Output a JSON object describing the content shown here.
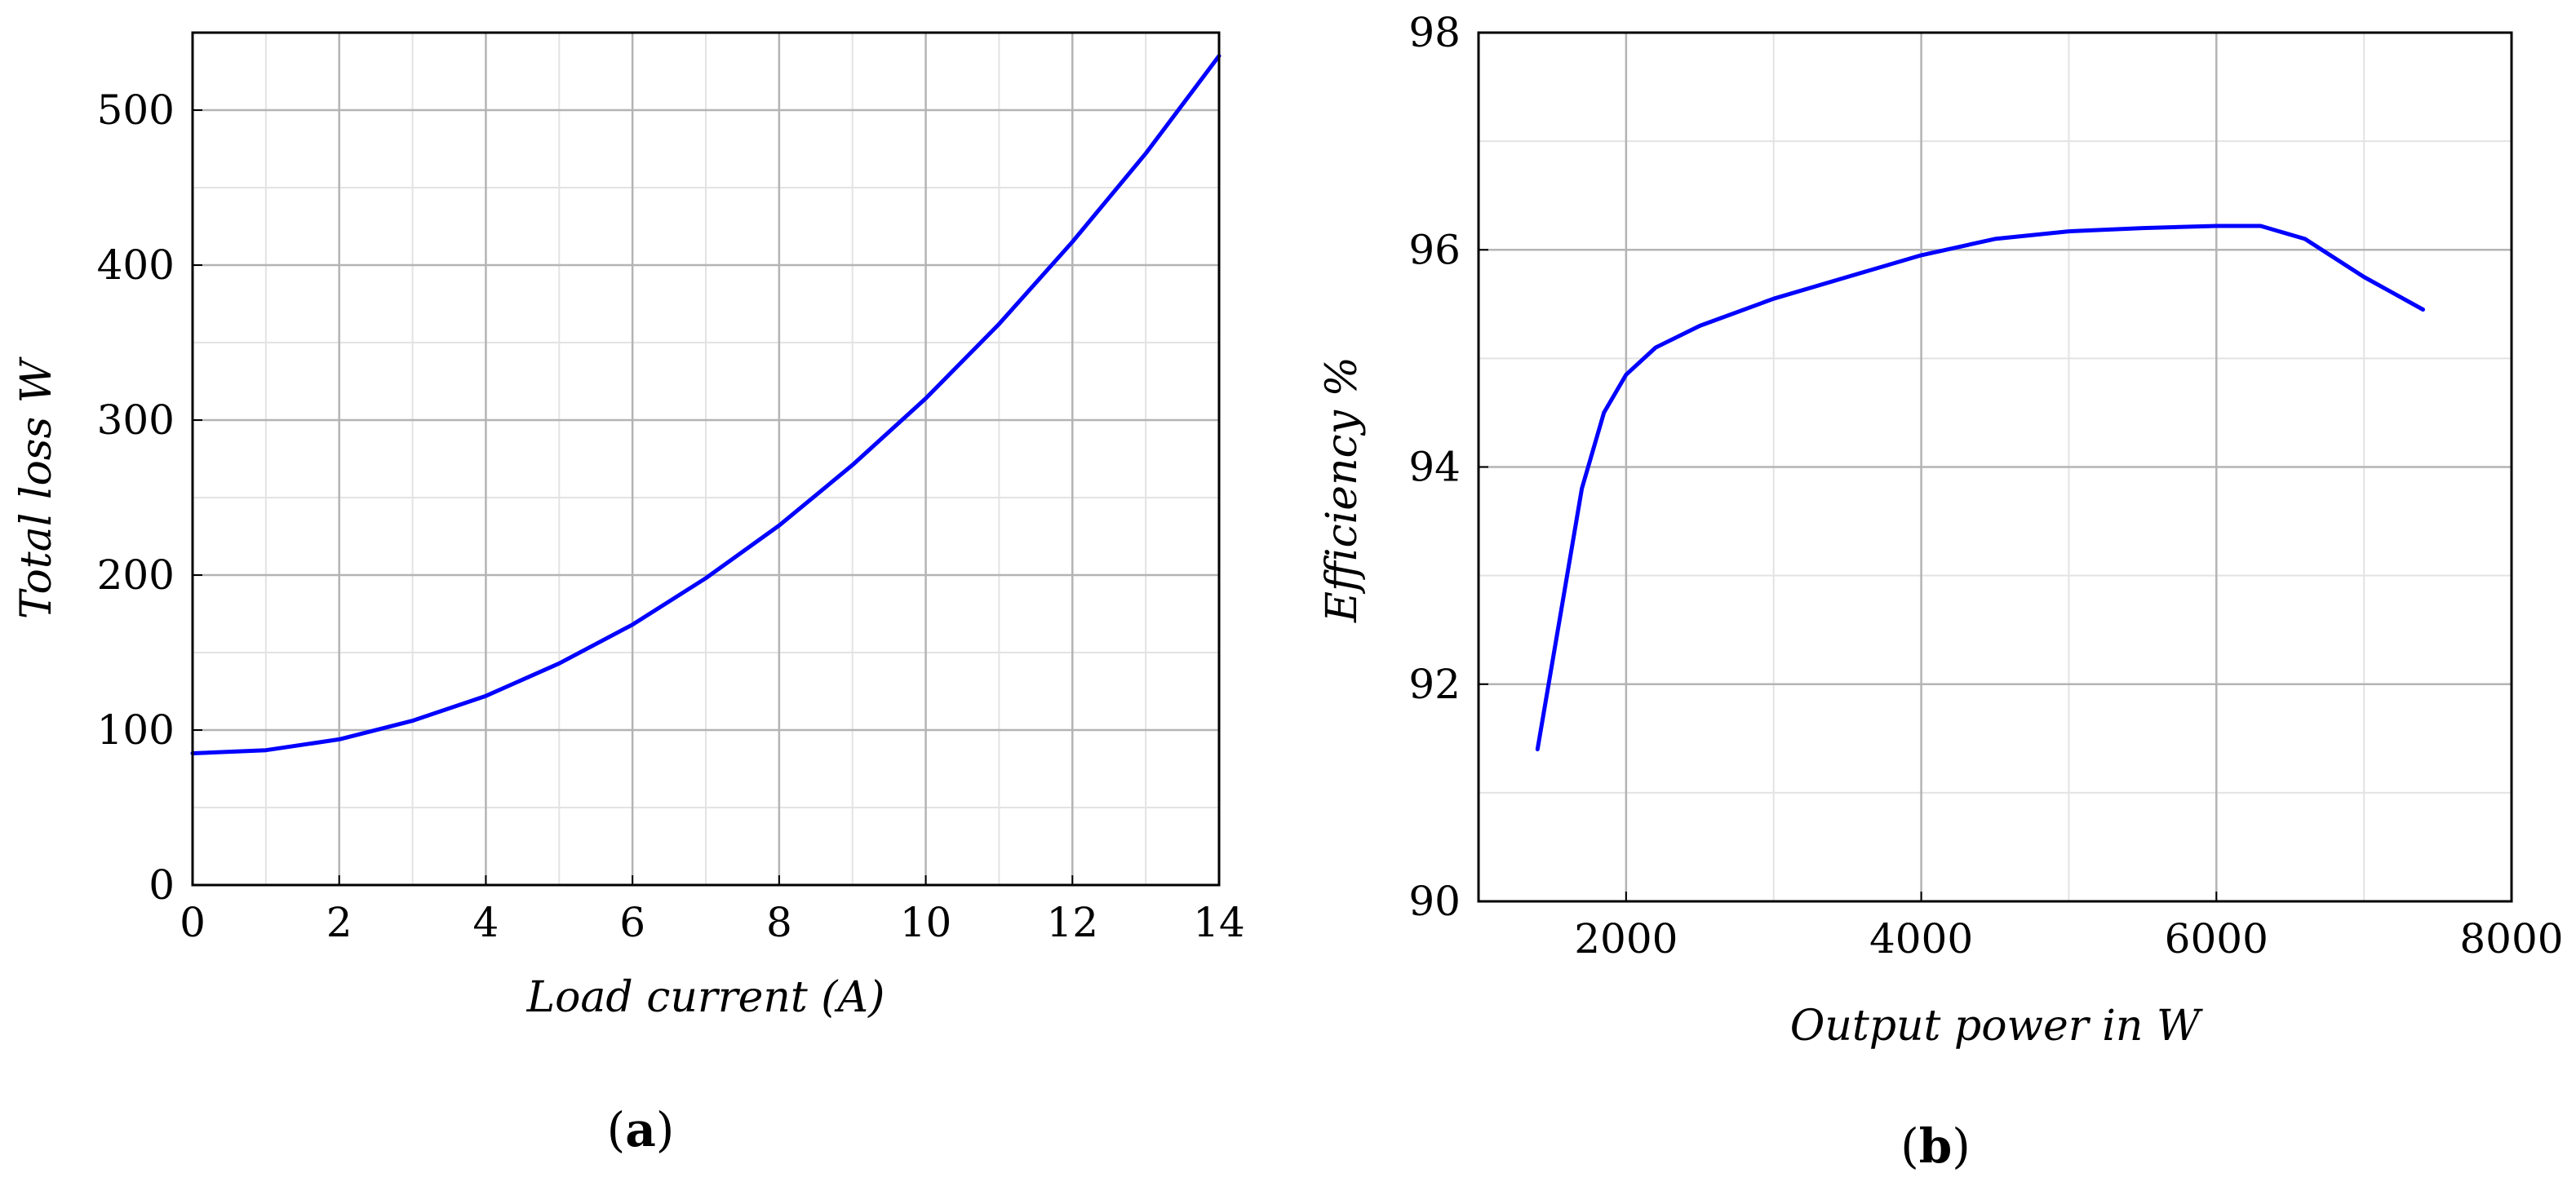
{
  "chart_data": [
    {
      "type": "line",
      "panel": "(a)",
      "panel_letter": "a",
      "xlabel": "Load current (A)",
      "ylabel": "Total loss W",
      "xlim": [
        0,
        14
      ],
      "ylim": [
        0,
        550
      ],
      "xticks": [
        0,
        2,
        4,
        6,
        8,
        10,
        12,
        14
      ],
      "yticks": [
        0,
        100,
        200,
        300,
        400,
        500
      ],
      "xticks_minor": [
        1,
        3,
        5,
        7,
        9,
        11,
        13
      ],
      "yticks_minor": [
        50,
        150,
        250,
        350,
        450
      ],
      "grid": true,
      "legend": "none",
      "line_color": "#0000ff",
      "series": [
        {
          "x": [
            0,
            1,
            2,
            3,
            4,
            5,
            6,
            7,
            8,
            9,
            10,
            11,
            12,
            13,
            14
          ],
          "y": [
            85,
            87,
            94,
            106,
            122,
            143,
            168,
            198,
            232,
            271,
            314,
            362,
            415,
            472,
            535
          ]
        }
      ]
    },
    {
      "type": "line",
      "panel": "(b)",
      "panel_letter": "b",
      "xlabel": "Output power in W",
      "ylabel": "Efficiency %",
      "xlim": [
        1000,
        8000
      ],
      "ylim": [
        90,
        98
      ],
      "xticks": [
        2000,
        4000,
        6000,
        8000
      ],
      "yticks": [
        90,
        92,
        94,
        96,
        98
      ],
      "xticks_minor": [
        3000,
        5000,
        7000
      ],
      "yticks_minor": [
        91,
        93,
        95,
        97
      ],
      "grid": true,
      "legend": "none",
      "line_color": "#0000ff",
      "series": [
        {
          "x": [
            1400,
            1550,
            1700,
            1850,
            2000,
            2200,
            2500,
            3000,
            3500,
            4000,
            4500,
            5000,
            5500,
            6000,
            6300,
            6600,
            7000,
            7400
          ],
          "y": [
            91.4,
            92.6,
            93.8,
            94.5,
            94.85,
            95.1,
            95.3,
            95.55,
            95.75,
            95.95,
            96.1,
            96.17,
            96.2,
            96.22,
            96.22,
            96.1,
            95.75,
            95.45
          ]
        }
      ]
    }
  ]
}
